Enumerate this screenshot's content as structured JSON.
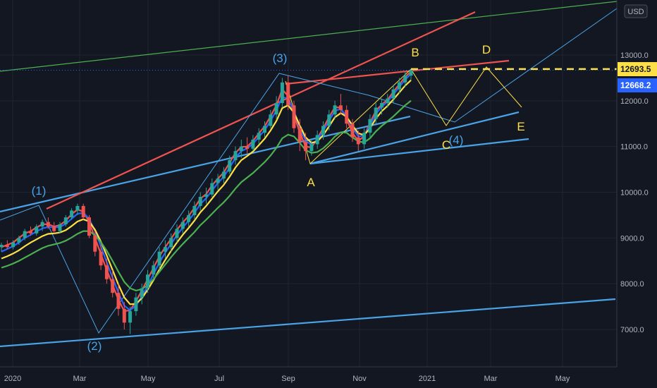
{
  "currency_label": "USD",
  "chart_data": {
    "type": "candlestick",
    "x_ticks": [
      "2020",
      "Mar",
      "May",
      "Jul",
      "Sep",
      "Nov",
      "2021",
      "Mar",
      "May"
    ],
    "y_ticks": [
      7000,
      8000,
      9000,
      10000,
      11000,
      12000,
      13000
    ],
    "y_ticks_text": [
      "7000.0",
      "8000.0",
      "9000.0",
      "10000.0",
      "11000.0",
      "12000.0",
      "13000.0"
    ],
    "ylim": [
      6400,
      14300
    ],
    "grid": true,
    "price_levels": [
      {
        "value": 12693.5,
        "text": "12693.5",
        "color": "#fde047",
        "style": "dashed"
      },
      {
        "value": 12668.2,
        "text": "12668.2",
        "color": "#2962ff",
        "style": "dotted"
      }
    ],
    "wave_labels": [
      {
        "text": "(1)",
        "color": "#4aa3e6"
      },
      {
        "text": "(2)",
        "color": "#4aa3e6"
      },
      {
        "text": "(3)",
        "color": "#4aa3e6"
      },
      {
        "text": "(4)",
        "color": "#4aa3e6"
      },
      {
        "text": "A",
        "color": "#fde047"
      },
      {
        "text": "B",
        "color": "#fde047"
      },
      {
        "text": "C",
        "color": "#fde047"
      },
      {
        "text": "D",
        "color": "#fde047"
      },
      {
        "text": "E",
        "color": "#fde047"
      }
    ],
    "series": [
      {
        "kind": "ohlc",
        "values": [
          [
            8800,
            8900,
            8700,
            8850
          ],
          [
            8850,
            8950,
            8750,
            8800
          ],
          [
            8800,
            8950,
            8750,
            8900
          ],
          [
            8900,
            9050,
            8850,
            9000
          ],
          [
            9000,
            9200,
            8950,
            9150
          ],
          [
            9150,
            9250,
            9050,
            9100
          ],
          [
            9100,
            9300,
            9050,
            9250
          ],
          [
            9250,
            9400,
            9150,
            9350
          ],
          [
            9350,
            9450,
            9200,
            9250
          ],
          [
            9250,
            9350,
            9100,
            9150
          ],
          [
            9150,
            9350,
            9100,
            9300
          ],
          [
            9300,
            9500,
            9250,
            9450
          ],
          [
            9450,
            9650,
            9400,
            9600
          ],
          [
            9600,
            9750,
            9500,
            9700
          ],
          [
            9700,
            9750,
            9400,
            9450
          ],
          [
            9450,
            9500,
            9000,
            9050
          ],
          [
            9050,
            9150,
            8600,
            8700
          ],
          [
            8700,
            8850,
            8300,
            8400
          ],
          [
            8400,
            8550,
            8000,
            8100
          ],
          [
            8100,
            8300,
            7700,
            7800
          ],
          [
            7800,
            8000,
            7300,
            7450
          ],
          [
            7450,
            7600,
            7000,
            7150
          ],
          [
            7150,
            7500,
            6900,
            7400
          ],
          [
            7400,
            7800,
            7300,
            7700
          ],
          [
            7700,
            8000,
            7550,
            7900
          ],
          [
            7900,
            8300,
            7800,
            8200
          ],
          [
            8200,
            8500,
            8100,
            8400
          ],
          [
            8400,
            8800,
            8300,
            8700
          ],
          [
            8700,
            8950,
            8550,
            8800
          ],
          [
            8800,
            9100,
            8700,
            9000
          ],
          [
            9000,
            9300,
            8900,
            9200
          ],
          [
            9200,
            9450,
            9100,
            9350
          ],
          [
            9350,
            9600,
            9250,
            9500
          ],
          [
            9500,
            9800,
            9400,
            9700
          ],
          [
            9700,
            10000,
            9600,
            9900
          ],
          [
            9900,
            10100,
            9750,
            9950
          ],
          [
            9950,
            10300,
            9900,
            10200
          ],
          [
            10200,
            10400,
            10050,
            10300
          ],
          [
            10300,
            10550,
            10200,
            10450
          ],
          [
            10450,
            10800,
            10400,
            10700
          ],
          [
            10700,
            11000,
            10600,
            10900
          ],
          [
            10900,
            11150,
            10750,
            11000
          ],
          [
            11000,
            11200,
            10850,
            10950
          ],
          [
            10950,
            11250,
            10900,
            11150
          ],
          [
            11150,
            11400,
            11050,
            11300
          ],
          [
            11300,
            11550,
            11200,
            11450
          ],
          [
            11450,
            11800,
            11400,
            11700
          ],
          [
            11700,
            12100,
            11600,
            11950
          ],
          [
            11950,
            12500,
            11850,
            12400
          ],
          [
            12400,
            12550,
            11800,
            11900
          ],
          [
            11900,
            12000,
            11300,
            11400
          ],
          [
            11400,
            11600,
            10900,
            11100
          ],
          [
            11100,
            11300,
            10700,
            10900
          ],
          [
            10900,
            11150,
            10800,
            11050
          ],
          [
            11050,
            11350,
            10950,
            11250
          ],
          [
            11250,
            11550,
            11150,
            11450
          ],
          [
            11450,
            11800,
            11350,
            11700
          ],
          [
            11700,
            12000,
            11600,
            11900
          ],
          [
            11900,
            12150,
            11700,
            11800
          ],
          [
            11800,
            11900,
            11400,
            11500
          ],
          [
            11500,
            11600,
            11100,
            11200
          ],
          [
            11200,
            11350,
            10900,
            11050
          ],
          [
            11050,
            11400,
            10950,
            11300
          ],
          [
            11300,
            11700,
            11200,
            11600
          ],
          [
            11600,
            11950,
            11500,
            11850
          ],
          [
            11850,
            12050,
            11700,
            11950
          ],
          [
            11950,
            12150,
            11850,
            12050
          ],
          [
            12050,
            12350,
            11950,
            12250
          ],
          [
            12250,
            12500,
            12150,
            12400
          ],
          [
            12400,
            12650,
            12300,
            12550
          ],
          [
            12550,
            12700,
            12450,
            12668.2
          ]
        ]
      },
      {
        "kind": "ma",
        "name": "",
        "color": "#ef5350",
        "values": [
          8800,
          8850,
          8900,
          9000,
          9100,
          9150,
          9230,
          9300,
          9300,
          9250,
          9280,
          9380,
          9520,
          9620,
          9580,
          9350,
          9000,
          8650,
          8300,
          7980,
          7650,
          7400,
          7420,
          7620,
          7850,
          8100,
          8350,
          8600,
          8800,
          8980,
          9180,
          9340,
          9480,
          9660,
          9860,
          9960,
          10150,
          10300,
          10430,
          10650,
          10860,
          10990,
          11000,
          11120,
          11290,
          11440,
          11660,
          11900,
          12250,
          12100,
          11700,
          11300,
          11000,
          10980,
          11180,
          11400,
          11640,
          11860,
          11850,
          11600,
          11300,
          11120,
          11230,
          11520,
          11780,
          11920,
          12020,
          12200,
          12360,
          12520,
          12640
        ]
      },
      {
        "kind": "ma",
        "name": "",
        "color": "#2962ff",
        "values": [
          8700,
          8760,
          8820,
          8900,
          9000,
          9070,
          9140,
          9210,
          9240,
          9230,
          9240,
          9310,
          9420,
          9530,
          9550,
          9420,
          9150,
          8820,
          8470,
          8130,
          7800,
          7520,
          7420,
          7520,
          7720,
          7960,
          8210,
          8460,
          8680,
          8870,
          9060,
          9230,
          9380,
          9550,
          9740,
          9870,
          10040,
          10200,
          10340,
          10540,
          10750,
          10900,
          10960,
          11060,
          11210,
          11360,
          11560,
          11790,
          12080,
          12050,
          11780,
          11420,
          11120,
          11040,
          11150,
          11340,
          11560,
          11780,
          11820,
          11660,
          11410,
          11220,
          11240,
          11460,
          11710,
          11870,
          11980,
          12140,
          12300,
          12460,
          12590
        ]
      },
      {
        "kind": "ma",
        "name": "",
        "color": "#fde047",
        "values": [
          8550,
          8600,
          8660,
          8730,
          8820,
          8900,
          8970,
          9040,
          9090,
          9100,
          9120,
          9170,
          9260,
          9360,
          9410,
          9360,
          9180,
          8920,
          8620,
          8300,
          7980,
          7700,
          7550,
          7560,
          7680,
          7870,
          8080,
          8310,
          8520,
          8720,
          8900,
          9070,
          9220,
          9380,
          9560,
          9700,
          9860,
          10020,
          10160,
          10340,
          10540,
          10700,
          10790,
          10890,
          11030,
          11170,
          11350,
          11560,
          11840,
          11900,
          11740,
          11460,
          11200,
          11080,
          11110,
          11250,
          11440,
          11640,
          11730,
          11650,
          11460,
          11290,
          11250,
          11400,
          11610,
          11770,
          11890,
          12030,
          12180,
          12330,
          12450
        ]
      },
      {
        "kind": "ma",
        "name": "",
        "color": "#4caf50",
        "values": [
          8350,
          8390,
          8440,
          8500,
          8570,
          8640,
          8710,
          8780,
          8830,
          8860,
          8890,
          8940,
          9010,
          9090,
          9150,
          9150,
          9060,
          8910,
          8720,
          8500,
          8260,
          8040,
          7900,
          7850,
          7880,
          7970,
          8100,
          8260,
          8420,
          8580,
          8730,
          8870,
          9000,
          9130,
          9280,
          9400,
          9530,
          9660,
          9780,
          9920,
          10080,
          10220,
          10320,
          10420,
          10540,
          10660,
          10800,
          10970,
          11180,
          11260,
          11220,
          11080,
          10920,
          10860,
          10880,
          10960,
          11080,
          11220,
          11310,
          11300,
          11200,
          11110,
          11090,
          11180,
          11330,
          11450,
          11550,
          11660,
          11780,
          11900,
          12000
        ]
      }
    ]
  }
}
